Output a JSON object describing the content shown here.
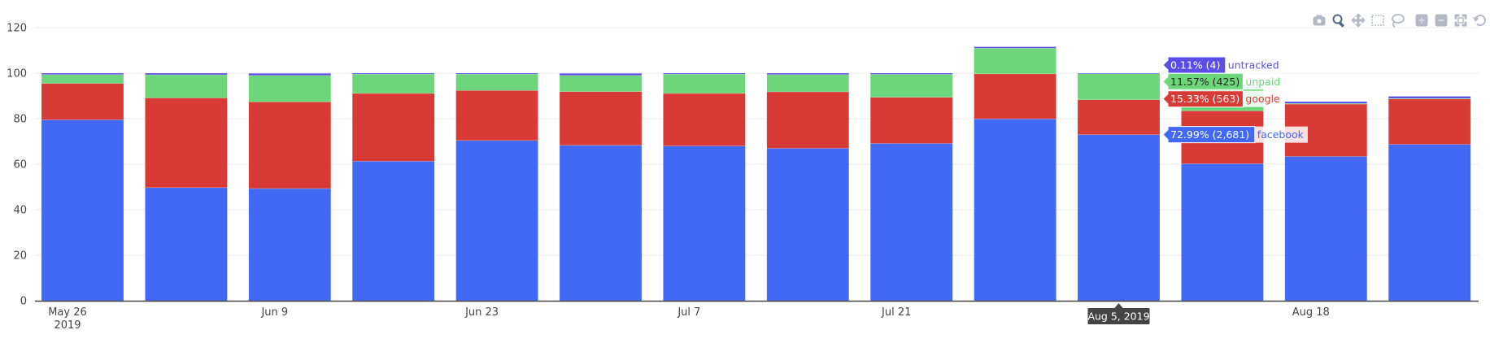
{
  "colors": {
    "facebook": "#4169f5",
    "google": "#d83b35",
    "unpaid": "#6dd67a",
    "untracked": "#5b4ee6",
    "grid": "#ebebeb",
    "axis": "#444444",
    "modebar_icon": "#b3b9c4"
  },
  "modebar": [
    {
      "name": "camera-icon",
      "active": false
    },
    {
      "name": "zoom-icon",
      "active": true
    },
    {
      "name": "pan-icon",
      "active": false
    },
    {
      "name": "box-select-icon",
      "active": false
    },
    {
      "name": "lasso-select-icon",
      "active": false
    },
    {
      "name": "zoom-in-icon",
      "active": false
    },
    {
      "name": "zoom-out-icon",
      "active": false
    },
    {
      "name": "autoscale-icon",
      "active": false
    },
    {
      "name": "reset-axes-icon",
      "active": false
    }
  ],
  "chart_data": {
    "type": "bar",
    "stacked": true,
    "title": "",
    "xlabel": "",
    "ylabel": "",
    "ylim": [
      0,
      125
    ],
    "yticks": [
      0,
      20,
      40,
      60,
      80,
      100,
      120
    ],
    "grid": true,
    "x": [
      "2019-05-26",
      "2019-06-02",
      "2019-06-09",
      "2019-06-16",
      "2019-06-23",
      "2019-06-30",
      "2019-07-07",
      "2019-07-14",
      "2019-07-21",
      "2019-07-28",
      "2019-08-05",
      "2019-08-11",
      "2019-08-18",
      "2019-08-25"
    ],
    "xtick_labels": [
      {
        "index": 0,
        "line1": "May 26",
        "line2": "2019"
      },
      {
        "index": 2,
        "line1": "Jun 9",
        "line2": ""
      },
      {
        "index": 4,
        "line1": "Jun 23",
        "line2": ""
      },
      {
        "index": 6,
        "line1": "Jul 7",
        "line2": ""
      },
      {
        "index": 8,
        "line1": "Jul 21",
        "line2": ""
      },
      {
        "index": 12,
        "line1": "Aug 18",
        "line2": ""
      }
    ],
    "series": [
      {
        "name": "facebook",
        "values": [
          79.5,
          49.7,
          49.3,
          61.3,
          70.4,
          68.3,
          68.0,
          67.0,
          69.1,
          79.9,
          72.99,
          60.2,
          63.4,
          68.7
        ]
      },
      {
        "name": "google",
        "values": [
          16.0,
          39.4,
          38.1,
          29.8,
          22.0,
          23.6,
          23.1,
          24.8,
          20.3,
          19.8,
          15.33,
          23.2,
          23.0,
          20.0
        ]
      },
      {
        "name": "unpaid",
        "values": [
          3.9,
          10.2,
          11.6,
          8.5,
          7.2,
          7.1,
          8.5,
          7.6,
          10.1,
          11.3,
          11.57,
          10.7,
          0.3,
          0.2
        ]
      },
      {
        "name": "untracked",
        "values": [
          0.6,
          0.7,
          0.9,
          0.4,
          0.4,
          0.9,
          0.4,
          0.6,
          0.5,
          0.6,
          0.11,
          0.5,
          0.8,
          0.9
        ]
      }
    ],
    "hover": {
      "x_label": "Aug 5, 2019",
      "index": 10,
      "labels": [
        {
          "series": "untracked",
          "value_text": "0.11% (4)",
          "name": "untracked"
        },
        {
          "series": "unpaid",
          "value_text": "11.57% (425)",
          "name": "unpaid"
        },
        {
          "series": "google",
          "value_text": "15.33% (563)",
          "name": "google"
        },
        {
          "series": "facebook",
          "value_text": "72.99% (2,681)",
          "name": "facebook"
        }
      ]
    }
  }
}
